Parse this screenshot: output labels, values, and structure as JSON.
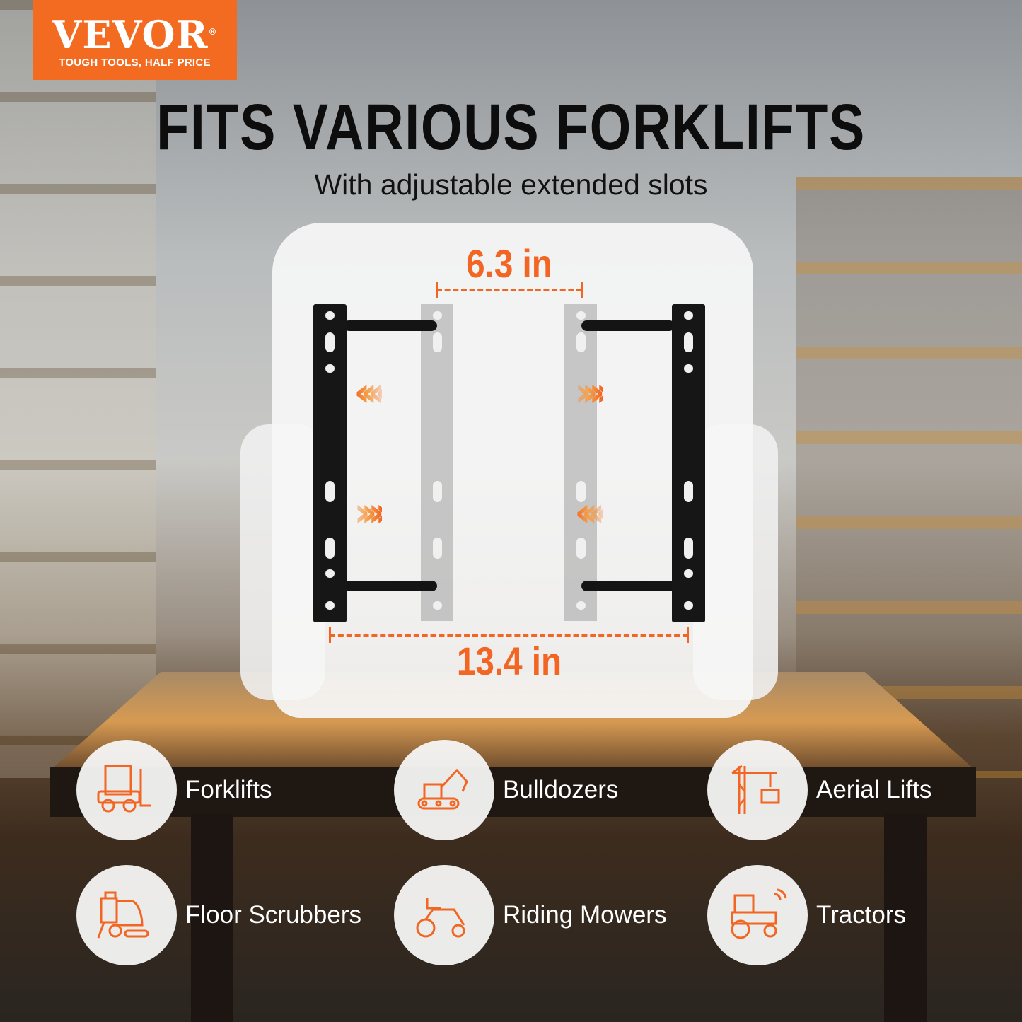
{
  "logo": {
    "brand": "VEVOR",
    "registered": "®",
    "tagline": "TOUGH TOOLS, HALF PRICE",
    "color": "#f36a21"
  },
  "headline": "FITS VARIOUS FORKLIFTS",
  "subheadline": "With adjustable extended slots",
  "dimensions": {
    "inner": "6.3 in",
    "outer": "13.4 in",
    "accent": "#f26522"
  },
  "categories": [
    {
      "label": "Forklifts",
      "icon": "forklift-icon"
    },
    {
      "label": "Bulldozers",
      "icon": "excavator-icon"
    },
    {
      "label": "Aerial Lifts",
      "icon": "crane-icon"
    },
    {
      "label": "Floor Scrubbers",
      "icon": "floor-scrubber-icon"
    },
    {
      "label": "Riding Mowers",
      "icon": "riding-mower-icon"
    },
    {
      "label": "Tractors",
      "icon": "tractor-icon"
    }
  ]
}
